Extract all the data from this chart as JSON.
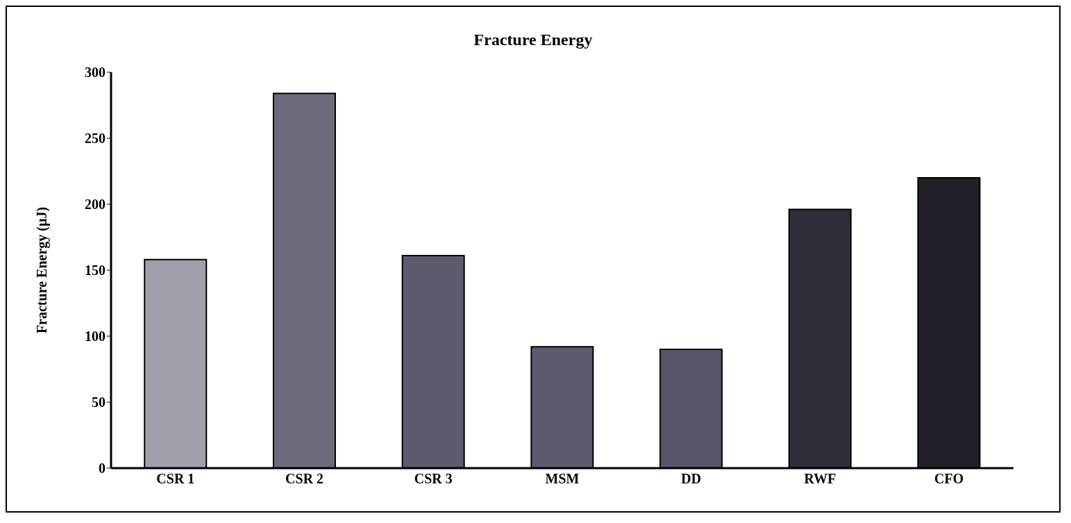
{
  "chart_data": {
    "type": "bar",
    "title": "Fracture Energy",
    "ylabel": "Fracture Energy (µJ)",
    "categories": [
      "CSR 1",
      "CSR 2",
      "CSR 3",
      "MSM",
      "DD",
      "RWF",
      "CFO"
    ],
    "values": [
      158,
      284,
      161,
      92,
      90,
      196,
      220
    ],
    "colors": [
      "#a0a0aa",
      "#6c6b7c",
      "#5c5b6e",
      "#5b5a6e",
      "#575669",
      "#302e3a",
      "#231e28"
    ],
    "ylim": [
      0,
      300
    ],
    "yticks": [
      0,
      50,
      100,
      150,
      200,
      250,
      300
    ],
    "grid": false,
    "legend": false
  }
}
